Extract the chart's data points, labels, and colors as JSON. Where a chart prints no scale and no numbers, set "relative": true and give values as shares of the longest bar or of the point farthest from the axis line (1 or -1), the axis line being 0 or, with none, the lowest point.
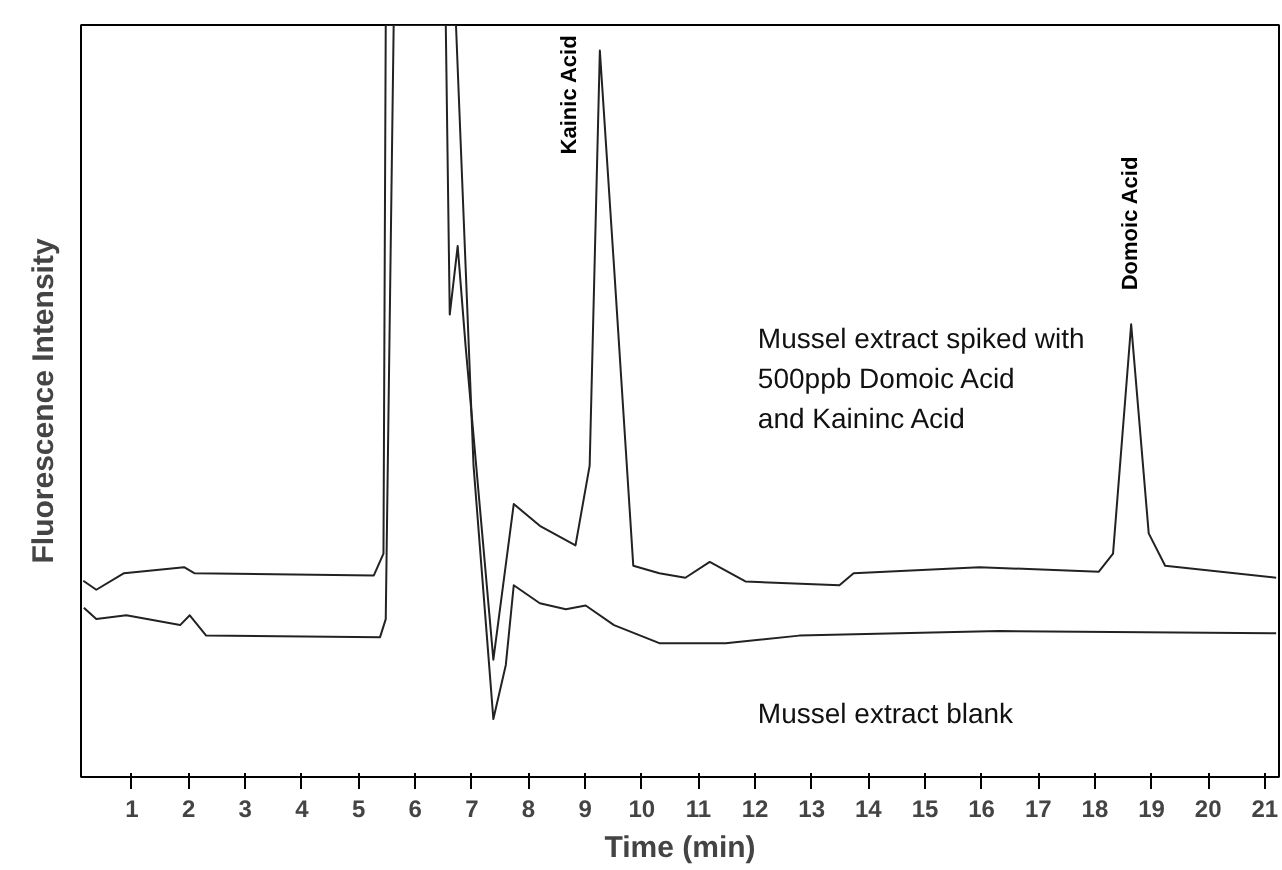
{
  "chart_data": {
    "type": "line",
    "relative": true,
    "xlabel": "Time (min)",
    "ylabel": "Fluorescence Intensity",
    "xlim": [
      0.1,
      21.25
    ],
    "xticks": [
      1,
      2,
      3,
      4,
      5,
      6,
      7,
      8,
      9,
      10,
      11,
      12,
      13,
      14,
      15,
      16,
      17,
      18,
      19,
      20,
      21
    ],
    "grid": false,
    "legend": false,
    "series": [
      {
        "name": "Mussel extract spiked with\n500ppb Domoic Acid\nand Kaininc Acid",
        "color": "#222222",
        "x": [
          0.14,
          0.37,
          0.86,
          1.92,
          2.1,
          5.27,
          5.44,
          5.48,
          5.8,
          6.54,
          6.61,
          6.75,
          6.89,
          7.38,
          7.74,
          8.2,
          8.83,
          9.08,
          9.26,
          9.51,
          9.85,
          10.31,
          10.77,
          11.2,
          11.83,
          13.49,
          13.74,
          15.96,
          18.07,
          18.32,
          18.64,
          18.95,
          19.24,
          21.2
        ],
        "values": [
          0.261,
          0.249,
          0.271,
          0.279,
          0.271,
          0.268,
          0.297,
          1,
          1,
          1,
          0.615,
          0.706,
          0.573,
          0.156,
          0.363,
          0.334,
          0.308,
          0.414,
          0.966,
          0.679,
          0.281,
          0.271,
          0.265,
          0.286,
          0.26,
          0.255,
          0.271,
          0.279,
          0.273,
          0.297,
          0.602,
          0.324,
          0.281,
          0.265
        ]
      },
      {
        "name": "Mussel extract blank",
        "color": "#222222",
        "x": [
          0.15,
          0.37,
          0.9,
          1.85,
          2.02,
          2.31,
          5.38,
          5.48,
          5.62,
          5.73,
          6.72,
          7.03,
          7.38,
          7.6,
          7.74,
          8.2,
          8.66,
          9.01,
          9.51,
          10.31,
          11.48,
          12.78,
          16.31,
          21.2
        ],
        "values": [
          0.225,
          0.21,
          0.215,
          0.202,
          0.215,
          0.188,
          0.186,
          0.21,
          1,
          1,
          1,
          0.414,
          0.077,
          0.149,
          0.255,
          0.231,
          0.223,
          0.228,
          0.202,
          0.178,
          0.178,
          0.188,
          0.194,
          0.191
        ]
      }
    ],
    "annotations": [
      {
        "text": "Kainic Acid",
        "x": 9.26,
        "y": 0.966
      },
      {
        "text": "Domoic Acid",
        "x": 18.64,
        "y": 0.602
      }
    ]
  }
}
